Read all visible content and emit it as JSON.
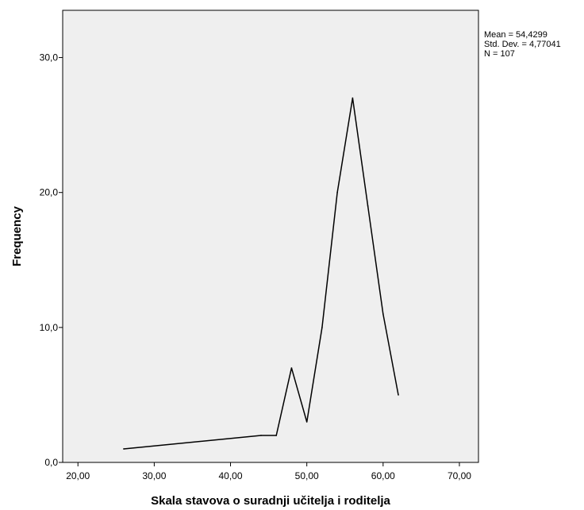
{
  "chart_data": {
    "type": "line",
    "title": "",
    "xlabel": "Skala stavova o suradnji učitelja i roditelja",
    "ylabel": "Frequency",
    "xlim": [
      18,
      72.5
    ],
    "ylim": [
      0,
      33.5
    ],
    "x_ticks": [
      20,
      30,
      40,
      50,
      60,
      70
    ],
    "x_tick_labels": [
      "20,00",
      "30,00",
      "40,00",
      "50,00",
      "60,00",
      "70,00"
    ],
    "y_ticks": [
      0,
      10,
      20,
      30
    ],
    "y_tick_labels": [
      "0,0",
      "10,0",
      "20,0",
      "30,0"
    ],
    "grid": false,
    "plot_background": "#efefef",
    "line_color": "#000000",
    "series": [
      {
        "x": [
          26,
          44,
          46,
          48,
          50,
          52,
          54,
          56,
          58,
          60,
          62
        ],
        "y": [
          1,
          2,
          2,
          7,
          3,
          10,
          20,
          27,
          19,
          11,
          5
        ]
      }
    ]
  },
  "stats": {
    "mean": "Mean = 54,4299",
    "std": "Std. Dev. = 4,77041",
    "n": "N = 107"
  }
}
